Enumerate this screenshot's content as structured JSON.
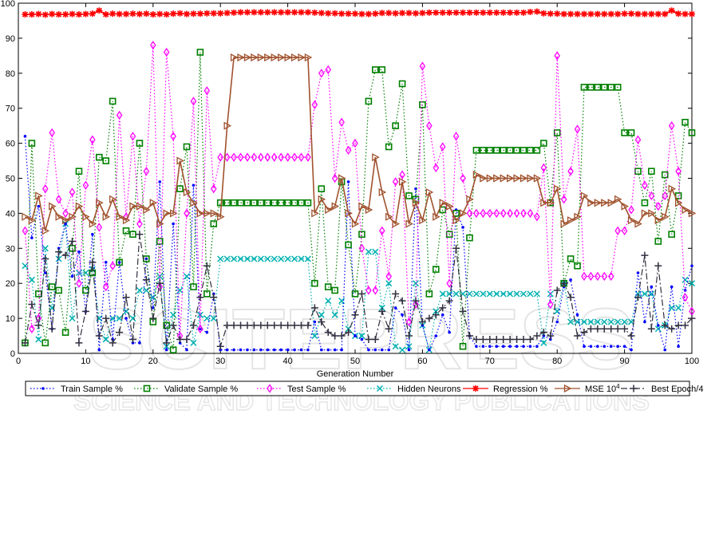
{
  "chart_data": {
    "type": "line",
    "title": "",
    "xlabel": "Generation Number",
    "ylabel": "",
    "xlim": [
      0,
      100
    ],
    "ylim": [
      0,
      100
    ],
    "xticks": [
      0,
      10,
      20,
      30,
      40,
      50,
      60,
      70,
      80,
      90,
      100
    ],
    "yticks": [
      0,
      10,
      20,
      30,
      40,
      50,
      60,
      70,
      80,
      90,
      100
    ],
    "grid": false,
    "legend_position": "bottom",
    "x": [
      1,
      2,
      3,
      4,
      5,
      6,
      7,
      8,
      9,
      10,
      11,
      12,
      13,
      14,
      15,
      16,
      17,
      18,
      19,
      20,
      21,
      22,
      23,
      24,
      25,
      26,
      27,
      28,
      29,
      30,
      31,
      32,
      33,
      34,
      35,
      36,
      37,
      38,
      39,
      40,
      41,
      42,
      43,
      44,
      45,
      46,
      47,
      48,
      49,
      50,
      51,
      52,
      53,
      54,
      55,
      56,
      57,
      58,
      59,
      60,
      61,
      62,
      63,
      64,
      65,
      66,
      67,
      68,
      69,
      70,
      71,
      72,
      73,
      74,
      75,
      76,
      77,
      78,
      79,
      80,
      81,
      82,
      83,
      84,
      85,
      86,
      87,
      88,
      89,
      90,
      91,
      92,
      93,
      94,
      95,
      96,
      97,
      98,
      99,
      100
    ],
    "series": [
      {
        "name": "Train Sample %",
        "color": "#0000ff",
        "marker": "dot",
        "line": "dotted",
        "values": [
          62,
          33,
          42,
          23,
          7,
          30,
          37,
          22,
          29,
          12,
          34,
          1,
          26,
          4,
          26,
          10,
          3,
          3,
          27,
          13,
          49,
          1,
          37,
          3,
          1,
          48,
          7,
          6,
          17,
          1,
          1,
          1,
          1,
          1,
          1,
          1,
          1,
          1,
          1,
          1,
          1,
          1,
          1,
          9,
          1,
          1,
          1,
          1,
          49,
          5,
          4,
          1,
          1,
          1,
          1,
          13,
          11,
          1,
          47,
          8,
          1,
          5,
          11,
          6,
          41,
          36,
          5,
          2,
          2,
          2,
          2,
          2,
          2,
          2,
          2,
          2,
          2,
          5,
          4,
          9,
          19,
          21,
          11,
          2,
          2,
          2,
          2,
          2,
          2,
          2,
          1,
          23,
          9,
          19,
          8,
          1,
          19,
          2,
          18,
          25
        ]
      },
      {
        "name": "Validate Sample %",
        "color": "#008000",
        "marker": "square",
        "line": "dotted",
        "values": [
          3,
          60,
          17,
          3,
          19,
          18,
          6,
          30,
          52,
          18,
          23,
          56,
          55,
          72,
          26,
          35,
          34,
          60,
          27,
          9,
          32,
          8,
          1,
          47,
          59,
          19,
          86,
          17,
          37,
          43,
          43,
          43,
          43,
          43,
          43,
          43,
          43,
          43,
          43,
          43,
          43,
          43,
          43,
          20,
          47,
          19,
          18,
          49,
          31,
          17,
          34,
          72,
          81,
          81,
          59,
          65,
          77,
          45,
          44,
          71,
          17,
          24,
          41,
          34,
          40,
          2,
          33,
          58,
          58,
          58,
          58,
          58,
          58,
          58,
          58,
          58,
          58,
          60,
          43,
          63,
          20,
          27,
          25,
          76,
          76,
          76,
          76,
          76,
          76,
          63,
          63,
          52,
          43,
          52,
          32,
          51,
          34,
          45,
          66,
          63
        ]
      },
      {
        "name": "Test Sample %",
        "color": "#ff00ff",
        "marker": "diamond",
        "line": "dotted",
        "values": [
          35,
          7,
          10,
          47,
          63,
          44,
          40,
          46,
          20,
          48,
          61,
          36,
          19,
          25,
          68,
          39,
          62,
          37,
          52,
          88,
          19,
          86,
          62,
          5,
          40,
          72,
          7,
          75,
          47,
          56,
          56,
          56,
          56,
          56,
          56,
          56,
          56,
          56,
          56,
          56,
          56,
          56,
          56,
          71,
          80,
          81,
          50,
          66,
          58,
          60,
          30,
          18,
          18,
          35,
          22,
          49,
          51,
          9,
          14,
          82,
          65,
          53,
          59,
          20,
          62,
          50,
          40,
          40,
          40,
          40,
          40,
          40,
          40,
          40,
          40,
          40,
          39,
          53,
          14,
          85,
          44,
          52,
          64,
          22,
          22,
          22,
          22,
          22,
          35,
          35,
          41,
          61,
          48,
          45,
          42,
          45,
          65,
          52,
          16,
          12
        ]
      },
      {
        "name": "Hidden Neurons",
        "color": "#00b0b0",
        "marker": "x",
        "line": "dotted",
        "values": [
          25,
          21,
          4,
          30,
          13,
          27,
          37,
          10,
          23,
          23,
          24,
          10,
          4,
          10,
          10,
          12,
          10,
          18,
          18,
          16,
          22,
          2,
          11,
          18,
          22,
          3,
          11,
          10,
          10,
          27,
          27,
          27,
          27,
          27,
          27,
          27,
          27,
          27,
          27,
          27,
          27,
          27,
          27,
          5,
          11,
          15,
          11,
          15,
          7,
          5,
          5,
          29,
          29,
          13,
          20,
          2,
          1,
          2,
          20,
          8,
          1,
          12,
          17,
          17,
          17,
          17,
          17,
          17,
          17,
          17,
          17,
          17,
          17,
          17,
          17,
          17,
          17,
          3,
          17,
          12,
          20,
          9,
          9,
          9,
          9,
          9,
          9,
          9,
          9,
          9,
          9,
          17,
          17,
          17,
          7,
          8,
          13,
          13,
          21,
          20
        ]
      },
      {
        "name": "Regression %",
        "color": "#ff0000",
        "marker": "star",
        "line": "solid",
        "values": [
          96.8,
          96.8,
          96.9,
          96.7,
          96.9,
          96.8,
          96.8,
          96.9,
          96.8,
          96.9,
          97.0,
          97.9,
          96.8,
          97.0,
          96.9,
          96.9,
          97.0,
          96.9,
          97.0,
          96.8,
          96.9,
          96.8,
          97.0,
          97.1,
          96.9,
          97.0,
          97.0,
          97.1,
          97.1,
          97.1,
          97.2,
          97.3,
          97.4,
          97.4,
          97.4,
          97.4,
          97.4,
          97.4,
          97.4,
          97.4,
          97.4,
          97.4,
          97.4,
          97.3,
          97.2,
          97.1,
          97.1,
          97.0,
          97.0,
          97.0,
          96.9,
          96.9,
          97.0,
          97.2,
          97.2,
          97.1,
          97.2,
          97.2,
          97.1,
          97.2,
          97.3,
          97.3,
          97.3,
          97.3,
          97.3,
          97.3,
          97.3,
          97.3,
          97.3,
          97.3,
          97.3,
          97.3,
          97.3,
          97.3,
          97.3,
          97.5,
          97.6,
          97.1,
          97.0,
          97.0,
          96.9,
          96.9,
          96.9,
          96.9,
          96.9,
          96.9,
          96.9,
          96.9,
          96.9,
          97.0,
          97.0,
          96.9,
          96.9,
          96.9,
          96.9,
          96.9,
          97.9,
          97.0,
          96.9,
          96.9
        ]
      },
      {
        "name": "MSE 10^4",
        "color": "#a0522d",
        "marker": "triangle-right",
        "line": "solid",
        "values": [
          39,
          38,
          45,
          35,
          42,
          39,
          38,
          39,
          42,
          39,
          37,
          43,
          39,
          44,
          39,
          38,
          42,
          42,
          41,
          43,
          37,
          40,
          40,
          55,
          46,
          43,
          40,
          40,
          40,
          39,
          65,
          84.5,
          84.5,
          84.5,
          84.5,
          84.5,
          84.5,
          84.5,
          84.5,
          84.5,
          84.5,
          84.5,
          84.5,
          40,
          44,
          41,
          42,
          50,
          40,
          37,
          42,
          41,
          56,
          46,
          39,
          37,
          49,
          37,
          43,
          38,
          46,
          39,
          43,
          42,
          38,
          40,
          44,
          51,
          50,
          50,
          50,
          50,
          50,
          50,
          50,
          50,
          50,
          43,
          43,
          47,
          37,
          38,
          39,
          45,
          43,
          43,
          43,
          43,
          44,
          42,
          38,
          37,
          40,
          40,
          38,
          39,
          47,
          43,
          41,
          40
        ]
      },
      {
        "name": "Best Epoch/4",
        "color": "#303040",
        "marker": "plus",
        "line": "dashdot",
        "values": [
          3,
          14,
          8,
          27,
          7,
          29,
          28,
          32,
          3,
          12,
          26,
          5,
          10,
          3,
          6,
          16,
          4,
          34,
          21,
          10,
          20,
          3,
          8,
          4,
          4,
          8,
          16,
          25,
          16,
          2,
          8,
          8,
          8,
          8,
          8,
          8,
          8,
          8,
          8,
          8,
          8,
          8,
          8,
          13,
          9,
          6,
          5,
          5,
          6,
          11,
          17,
          4,
          4,
          12,
          7,
          17,
          15,
          5,
          15,
          9,
          10,
          11,
          13,
          15,
          30,
          12,
          5,
          4,
          4,
          4,
          4,
          4,
          4,
          4,
          4,
          4,
          5,
          6,
          5,
          18,
          20,
          16,
          5,
          6,
          7,
          7,
          7,
          7,
          7,
          7,
          5,
          16,
          28,
          7,
          25,
          8,
          7,
          8,
          8,
          10
        ]
      }
    ]
  },
  "legend": {
    "items": [
      {
        "label": "Train Sample %",
        "color": "#0000ff",
        "marker": "dot"
      },
      {
        "label": "Validate Sample %",
        "color": "#008000",
        "marker": "square"
      },
      {
        "label": "Test Sample %",
        "color": "#ff00ff",
        "marker": "diamond"
      },
      {
        "label": "Hidden Neurons",
        "color": "#00b0b0",
        "marker": "x"
      },
      {
        "label": "Regression %",
        "color": "#ff0000",
        "marker": "star"
      },
      {
        "label": "MSE 10",
        "sup": "4",
        "color": "#a0522d",
        "marker": "triangle-right"
      },
      {
        "label": "Best Epoch/4",
        "color": "#303040",
        "marker": "plus"
      }
    ]
  },
  "watermark": {
    "line1": "SCITEPRESS",
    "line2": "SCIENCE AND TECHNOLOGY PUBLICATIONS"
  }
}
